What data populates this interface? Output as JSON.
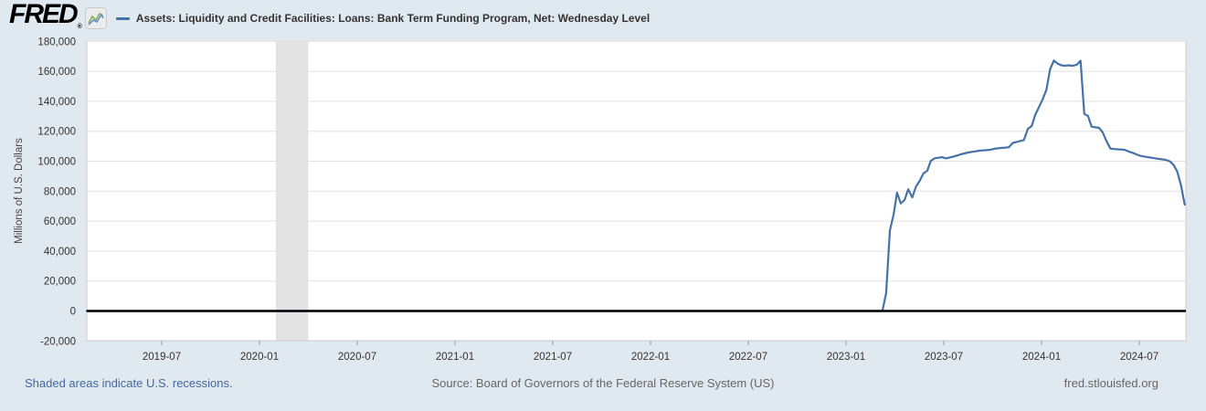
{
  "header": {
    "logo_text": "FRED",
    "logo_registered": "®",
    "legend_series_title": "Assets: Liquidity and Credit Facilities: Loans: Bank Term Funding Program, Net: Wednesday Level"
  },
  "footer": {
    "recession_note": "Shaded areas indicate U.S. recessions.",
    "source_text": "Source: Board of Governors of the Federal Reserve System (US)",
    "site_link": "fred.stlouisfed.org"
  },
  "colors": {
    "page_bg": "#e1e9f0",
    "plot_bg": "#ffffff",
    "series_line": "#4572a7",
    "zero_line": "#000000",
    "gridline": "#e2e2e2",
    "recession_band": "#e3e3e3",
    "plot_border": "#cccccc",
    "tick_mark": "#999999",
    "tick_text": "#333333",
    "footer_link": "#44689d",
    "footer_text": "#666666"
  },
  "chart_data": {
    "type": "line",
    "title": "Assets: Liquidity and Credit Facilities: Loans: Bank Term Funding Program, Net: Wednesday Level",
    "xlabel": "",
    "ylabel": "Millions of U.S. Dollars",
    "x_domain": [
      "2019-02-13",
      "2024-09-27"
    ],
    "ylim": [
      -20000,
      180000
    ],
    "y_tick_step": 20000,
    "grid": "horizontal",
    "legend_position": "top-left",
    "y_ticks": [
      {
        "value": 180000,
        "label": "180,000"
      },
      {
        "value": 160000,
        "label": "160,000"
      },
      {
        "value": 140000,
        "label": "140,000"
      },
      {
        "value": 120000,
        "label": "120,000"
      },
      {
        "value": 100000,
        "label": "100,000"
      },
      {
        "value": 80000,
        "label": "80,000"
      },
      {
        "value": 60000,
        "label": "60,000"
      },
      {
        "value": 40000,
        "label": "40,000"
      },
      {
        "value": 20000,
        "label": "20,000"
      },
      {
        "value": 0,
        "label": "0"
      },
      {
        "value": -20000,
        "label": "-20,000"
      }
    ],
    "x_ticks": [
      {
        "date": "2019-07-01",
        "label": "2019-07"
      },
      {
        "date": "2020-01-01",
        "label": "2020-01"
      },
      {
        "date": "2020-07-01",
        "label": "2020-07"
      },
      {
        "date": "2021-01-01",
        "label": "2021-01"
      },
      {
        "date": "2021-07-01",
        "label": "2021-07"
      },
      {
        "date": "2022-01-01",
        "label": "2022-01"
      },
      {
        "date": "2022-07-01",
        "label": "2022-07"
      },
      {
        "date": "2023-01-01",
        "label": "2023-01"
      },
      {
        "date": "2023-07-01",
        "label": "2023-07"
      },
      {
        "date": "2024-01-01",
        "label": "2024-01"
      },
      {
        "date": "2024-07-01",
        "label": "2024-07"
      }
    ],
    "recessions": [
      {
        "start": "2020-02-01",
        "end": "2020-04-01"
      }
    ],
    "series": [
      {
        "name": "Assets: Liquidity and Credit Facilities: Loans: Bank Term Funding Program, Net: Wednesday Level",
        "color": "#4572a7",
        "units": "Millions of U.S. Dollars",
        "points": [
          [
            "2019-02-13",
            0
          ],
          [
            "2023-03-08",
            0
          ],
          [
            "2023-03-15",
            11900
          ],
          [
            "2023-03-22",
            53700
          ],
          [
            "2023-03-29",
            64400
          ],
          [
            "2023-04-05",
            79000
          ],
          [
            "2023-04-12",
            71800
          ],
          [
            "2023-04-19",
            74000
          ],
          [
            "2023-04-26",
            81300
          ],
          [
            "2023-05-03",
            75800
          ],
          [
            "2023-05-10",
            83100
          ],
          [
            "2023-05-17",
            87000
          ],
          [
            "2023-05-24",
            91900
          ],
          [
            "2023-05-31",
            93600
          ],
          [
            "2023-06-07",
            100200
          ],
          [
            "2023-06-14",
            101900
          ],
          [
            "2023-06-21",
            102300
          ],
          [
            "2023-06-28",
            102700
          ],
          [
            "2023-07-05",
            101900
          ],
          [
            "2023-07-12",
            102500
          ],
          [
            "2023-07-19",
            103100
          ],
          [
            "2023-07-26",
            103800
          ],
          [
            "2023-08-02",
            104600
          ],
          [
            "2023-08-09",
            105200
          ],
          [
            "2023-08-16",
            105800
          ],
          [
            "2023-08-23",
            106200
          ],
          [
            "2023-08-30",
            106600
          ],
          [
            "2023-09-06",
            107000
          ],
          [
            "2023-09-13",
            107200
          ],
          [
            "2023-09-20",
            107400
          ],
          [
            "2023-09-27",
            107600
          ],
          [
            "2023-10-04",
            108300
          ],
          [
            "2023-10-11",
            108600
          ],
          [
            "2023-10-18",
            108900
          ],
          [
            "2023-10-25",
            109100
          ],
          [
            "2023-11-01",
            109300
          ],
          [
            "2023-11-08",
            112200
          ],
          [
            "2023-11-15",
            112800
          ],
          [
            "2023-11-22",
            113500
          ],
          [
            "2023-11-29",
            114100
          ],
          [
            "2023-12-06",
            121700
          ],
          [
            "2023-12-13",
            123500
          ],
          [
            "2023-12-20",
            131300
          ],
          [
            "2023-12-27",
            136400
          ],
          [
            "2024-01-03",
            141300
          ],
          [
            "2024-01-10",
            147700
          ],
          [
            "2024-01-17",
            161500
          ],
          [
            "2024-01-24",
            167200
          ],
          [
            "2024-01-31",
            165200
          ],
          [
            "2024-02-07",
            164100
          ],
          [
            "2024-02-14",
            163700
          ],
          [
            "2024-02-21",
            164000
          ],
          [
            "2024-02-28",
            163700
          ],
          [
            "2024-03-06",
            164400
          ],
          [
            "2024-03-13",
            167100
          ],
          [
            "2024-03-20",
            131600
          ],
          [
            "2024-03-27",
            130200
          ],
          [
            "2024-04-03",
            123200
          ],
          [
            "2024-04-10",
            122600
          ],
          [
            "2024-04-17",
            122300
          ],
          [
            "2024-04-24",
            119200
          ],
          [
            "2024-05-01",
            113100
          ],
          [
            "2024-05-08",
            108400
          ],
          [
            "2024-05-15",
            108100
          ],
          [
            "2024-05-22",
            107900
          ],
          [
            "2024-05-29",
            107800
          ],
          [
            "2024-06-05",
            107500
          ],
          [
            "2024-06-12",
            106400
          ],
          [
            "2024-06-19",
            105600
          ],
          [
            "2024-06-26",
            104600
          ],
          [
            "2024-07-03",
            103600
          ],
          [
            "2024-07-10",
            103100
          ],
          [
            "2024-07-17",
            102700
          ],
          [
            "2024-07-24",
            102300
          ],
          [
            "2024-07-31",
            101900
          ],
          [
            "2024-08-07",
            101500
          ],
          [
            "2024-08-14",
            101200
          ],
          [
            "2024-08-21",
            100800
          ],
          [
            "2024-08-28",
            99800
          ],
          [
            "2024-09-04",
            97600
          ],
          [
            "2024-09-11",
            93200
          ],
          [
            "2024-09-18",
            84000
          ],
          [
            "2024-09-25",
            71000
          ]
        ]
      }
    ]
  }
}
